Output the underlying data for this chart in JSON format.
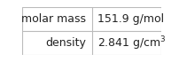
{
  "rows": [
    {
      "label": "molar mass",
      "value": "151.9 g/mol",
      "superscript": null
    },
    {
      "label": "density",
      "value": "2.841 g/cm",
      "superscript": "3"
    }
  ],
  "background_color": "#ffffff",
  "border_color": "#bbbbbb",
  "text_color": "#222222",
  "font_size": 9,
  "col_split": 0.5
}
